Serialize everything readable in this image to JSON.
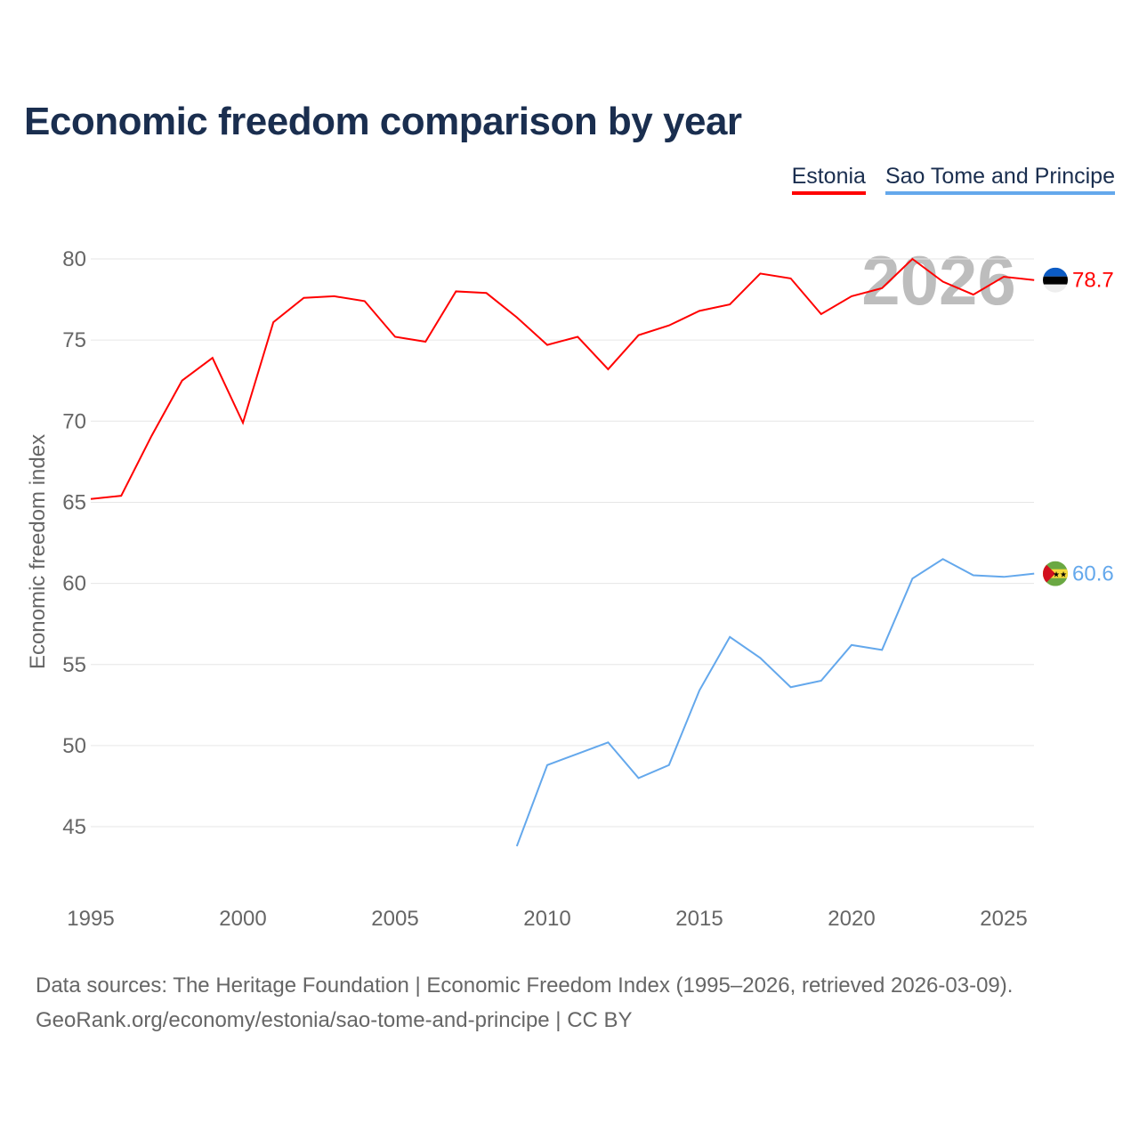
{
  "title": "Economic freedom comparison by year",
  "footer": {
    "line1": "Data sources: The Heritage Foundation | Economic Freedom Index (1995–2026, retrieved 2026-03-09).",
    "line2": "GeoRank.org/economy/estonia/sao-tome-and-principe | CC BY"
  },
  "chart_data": {
    "type": "line",
    "title": "Economic freedom comparison by year",
    "xlabel": "",
    "ylabel": "Economic freedom index",
    "year_watermark": "2026",
    "xlim": [
      1995,
      2026
    ],
    "ylim": [
      42,
      81
    ],
    "x_ticks": [
      "1995",
      "2000",
      "2005",
      "2010",
      "2015",
      "2020",
      "2025"
    ],
    "y_ticks": [
      "45",
      "50",
      "55",
      "60",
      "65",
      "70",
      "75",
      "80"
    ],
    "grid": true,
    "legend_position": "top-right",
    "series": [
      {
        "name": "Estonia",
        "color": "#ff0000",
        "end_label": "78.7",
        "flag": "estonia-flag",
        "x": [
          1995,
          1996,
          1997,
          1998,
          1999,
          2000,
          2001,
          2002,
          2003,
          2004,
          2005,
          2006,
          2007,
          2008,
          2009,
          2010,
          2011,
          2012,
          2013,
          2014,
          2015,
          2016,
          2017,
          2018,
          2019,
          2020,
          2021,
          2022,
          2023,
          2024,
          2025,
          2026
        ],
        "values": [
          65.2,
          65.4,
          69.1,
          72.5,
          73.9,
          69.9,
          76.1,
          77.6,
          77.7,
          77.4,
          75.2,
          74.9,
          78.0,
          77.9,
          76.4,
          74.7,
          75.2,
          73.2,
          75.3,
          75.9,
          76.8,
          77.2,
          79.1,
          78.8,
          76.6,
          77.7,
          78.2,
          80.0,
          78.6,
          77.8,
          78.9,
          78.7
        ]
      },
      {
        "name": "Sao Tome and Principe",
        "color": "#64a8ec",
        "end_label": "60.6",
        "flag": "sao-tome-flag",
        "x": [
          2009,
          2010,
          2011,
          2012,
          2013,
          2014,
          2015,
          2016,
          2017,
          2018,
          2019,
          2020,
          2021,
          2022,
          2023,
          2024,
          2025,
          2026
        ],
        "values": [
          43.8,
          48.8,
          49.5,
          50.2,
          48.0,
          48.8,
          53.4,
          56.7,
          55.4,
          53.6,
          54.0,
          56.2,
          55.9,
          60.3,
          61.5,
          60.5,
          60.4,
          60.6
        ]
      }
    ]
  }
}
